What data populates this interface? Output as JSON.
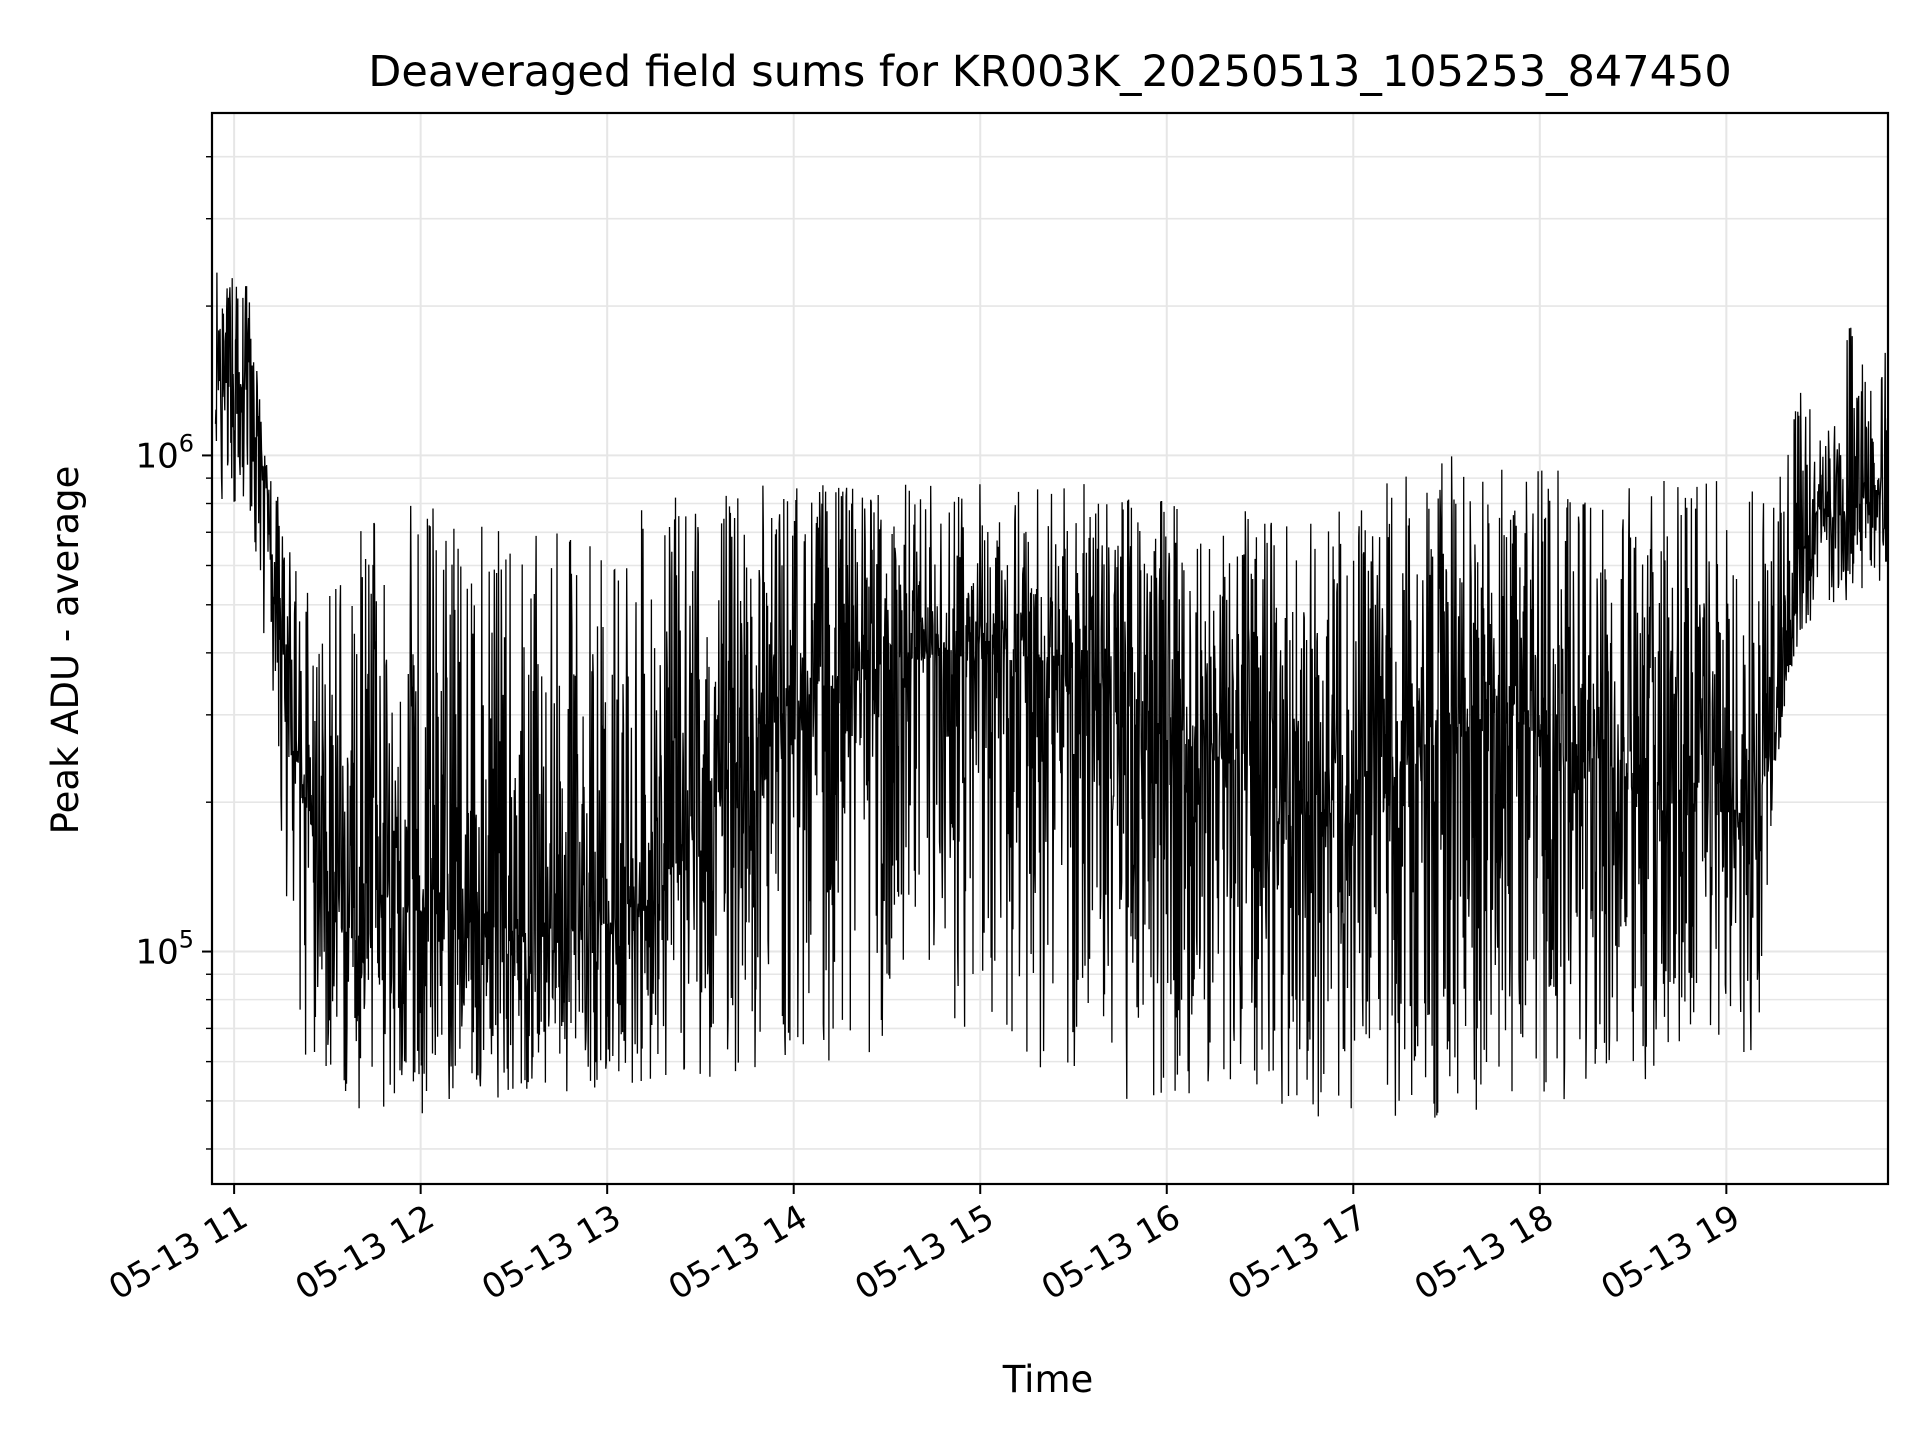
{
  "chart_data": {
    "type": "line",
    "title": "Deaveraged field sums for KR003K_20250513_105253_847450",
    "xlabel": "Time",
    "ylabel": "Peak ADU - average",
    "yscale": "log",
    "ylim": [
      34000,
      4900000
    ],
    "xlim": [
      "2025-05-13 10:52:53",
      "2025-05-13 19:52:00"
    ],
    "x_ticks": [
      "05-13 11",
      "05-13 12",
      "05-13 13",
      "05-13 14",
      "05-13 15",
      "05-13 16",
      "05-13 17",
      "05-13 18",
      "05-13 19"
    ],
    "y_ticks": [
      {
        "value": 100000,
        "base": "10",
        "exp": "5"
      },
      {
        "value": 1000000,
        "base": "10",
        "exp": "6"
      }
    ],
    "grid": true,
    "series": [
      {
        "color": "#000000",
        "x": [
          "2025-05-13 10:52:53",
          "2025-05-13 11:00:00",
          "2025-05-13 11:05:00",
          "2025-05-13 11:10:00",
          "2025-05-13 11:15:00",
          "2025-05-13 11:20:00",
          "2025-05-13 11:25:00",
          "2025-05-13 11:30:00",
          "2025-05-13 11:40:00",
          "2025-05-13 11:50:00",
          "2025-05-13 12:00:00",
          "2025-05-13 12:15:00",
          "2025-05-13 12:30:00",
          "2025-05-13 12:45:00",
          "2025-05-13 13:00:00",
          "2025-05-13 13:15:00",
          "2025-05-13 13:30:00",
          "2025-05-13 13:45:00",
          "2025-05-13 14:00:00",
          "2025-05-13 14:15:00",
          "2025-05-13 14:30:00",
          "2025-05-13 14:45:00",
          "2025-05-13 15:00:00",
          "2025-05-13 15:15:00",
          "2025-05-13 15:30:00",
          "2025-05-13 15:45:00",
          "2025-05-13 16:00:00",
          "2025-05-13 16:15:00",
          "2025-05-13 16:30:00",
          "2025-05-13 16:45:00",
          "2025-05-13 17:00:00",
          "2025-05-13 17:15:00",
          "2025-05-13 17:30:00",
          "2025-05-13 17:45:00",
          "2025-05-13 18:00:00",
          "2025-05-13 18:15:00",
          "2025-05-13 18:30:00",
          "2025-05-13 18:45:00",
          "2025-05-13 19:00:00",
          "2025-05-13 19:10:00",
          "2025-05-13 19:15:00",
          "2025-05-13 19:20:00",
          "2025-05-13 19:25:00",
          "2025-05-13 19:30:00",
          "2025-05-13 19:35:00",
          "2025-05-13 19:40:00",
          "2025-05-13 19:45:00",
          "2025-05-13 19:52:00"
        ],
        "center": [
          1400000,
          1350000,
          1300000,
          900000,
          400000,
          250000,
          180000,
          150000,
          140000,
          130000,
          120000,
          115000,
          110000,
          110000,
          115000,
          130000,
          180000,
          250000,
          320000,
          350000,
          380000,
          390000,
          400000,
          390000,
          370000,
          330000,
          280000,
          250000,
          220000,
          200000,
          180000,
          220000,
          280000,
          300000,
          280000,
          250000,
          220000,
          200000,
          190000,
          200000,
          260000,
          400000,
          650000,
          800000,
          780000,
          760000,
          800000,
          820000
        ],
        "high": [
          2400000,
          2300000,
          2200000,
          1050000,
          800000,
          600000,
          580000,
          560000,
          720000,
          800000,
          850000,
          780000,
          680000,
          700000,
          720000,
          800000,
          860000,
          880000,
          900000,
          880000,
          890000,
          880000,
          900000,
          900000,
          880000,
          860000,
          850000,
          800000,
          760000,
          740000,
          800000,
          950000,
          1000000,
          980000,
          960000,
          950000,
          940000,
          920000,
          900000,
          850000,
          900000,
          1300000,
          1450000,
          1100000,
          1250000,
          2000000,
          1600000,
          1800000
        ],
        "low": [
          800000,
          780000,
          700000,
          400000,
          180000,
          70000,
          55000,
          50000,
          48000,
          46000,
          47000,
          52000,
          50000,
          52000,
          53000,
          54000,
          55000,
          56000,
          58000,
          60000,
          62000,
          65000,
          70000,
          60000,
          50000,
          48000,
          50000,
          52000,
          50000,
          48000,
          42000,
          44000,
          46000,
          47000,
          48000,
          47000,
          46000,
          50000,
          55000,
          60000,
          200000,
          350000,
          450000,
          480000,
          500000,
          500000,
          520000,
          550000
        ]
      }
    ]
  }
}
